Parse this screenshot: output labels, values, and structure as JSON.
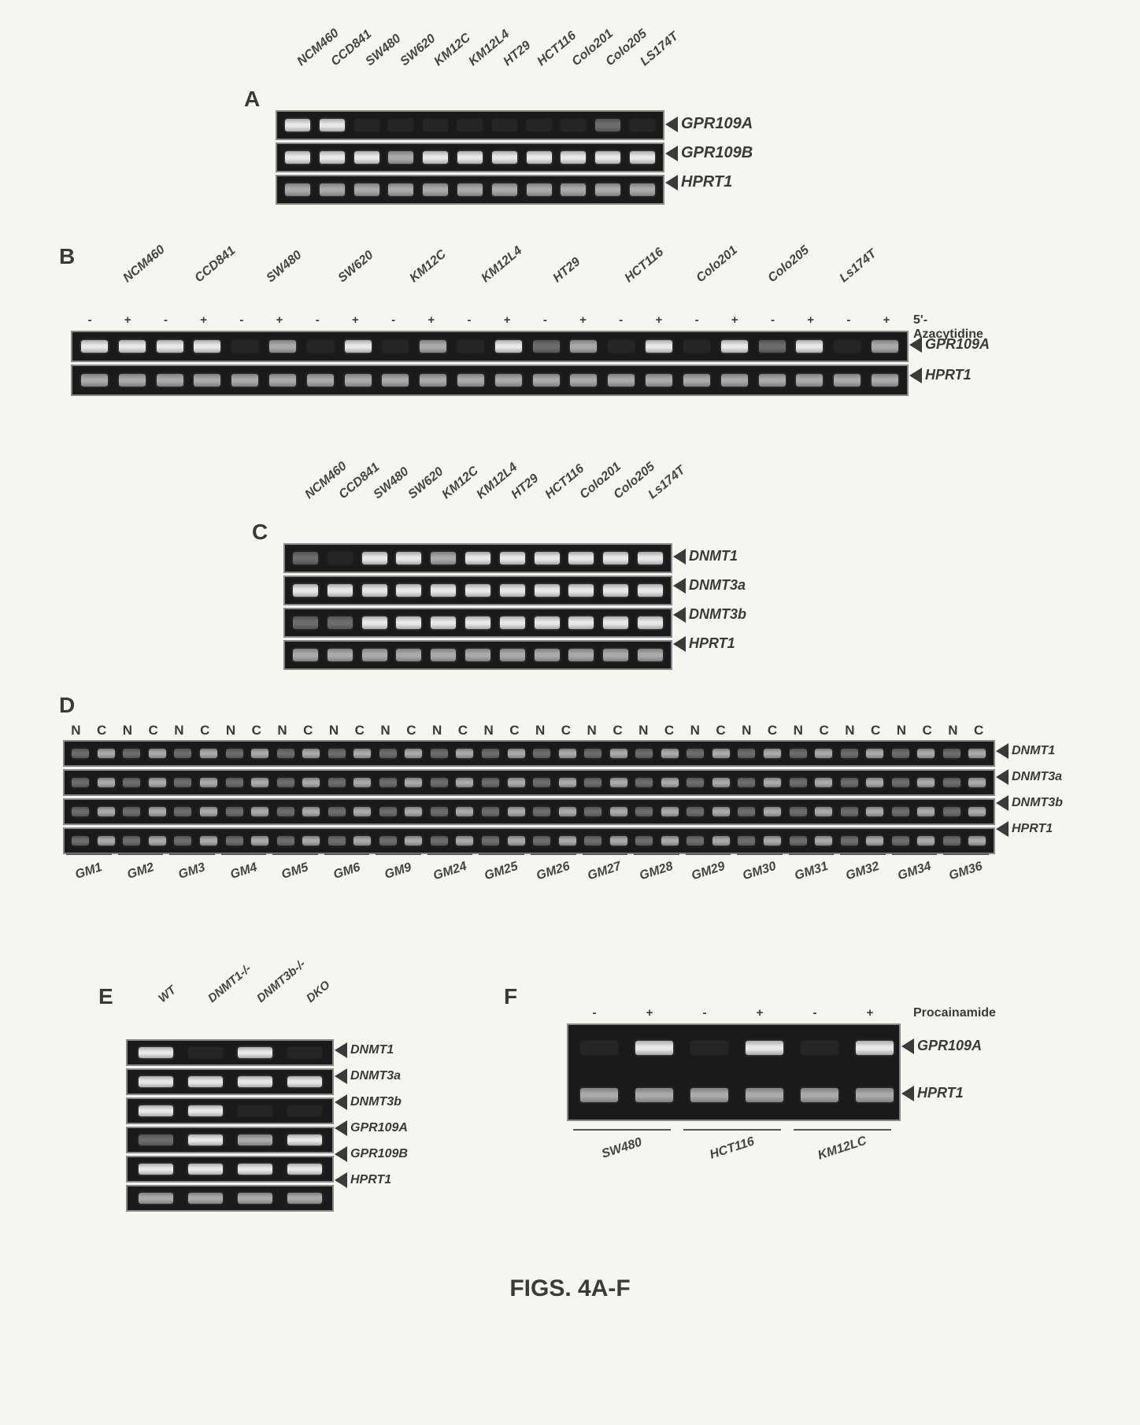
{
  "caption": "FIGS. 4A-F",
  "panelA": {
    "label": "A",
    "samples": [
      "NCM460",
      "CCD841",
      "SW480",
      "SW620",
      "KM12C",
      "KM12L4",
      "HT29",
      "HCT116",
      "Colo201",
      "Colo205",
      "LS174T"
    ],
    "rows": [
      {
        "name": "GPR109A",
        "intensity": [
          "strong",
          "strong",
          "faint",
          "faint",
          "faint",
          "faint",
          "faint",
          "faint",
          "faint",
          "weak",
          "faint"
        ]
      },
      {
        "name": "GPR109B",
        "intensity": [
          "strong",
          "strong",
          "strong",
          "med",
          "strong",
          "strong",
          "strong",
          "strong",
          "strong",
          "strong",
          "strong"
        ]
      },
      {
        "name": "HPRT1",
        "intensity": [
          "med",
          "med",
          "med",
          "med",
          "med",
          "med",
          "med",
          "med",
          "med",
          "med",
          "med"
        ]
      }
    ]
  },
  "panelB": {
    "label": "B",
    "treatment": "5'-Azacytidine",
    "samples": [
      "NCM460",
      "CCD841",
      "SW480",
      "SW620",
      "KM12C",
      "KM12L4",
      "HT29",
      "HCT116",
      "Colo201",
      "Colo205",
      "Ls174T"
    ],
    "pm": [
      "-",
      "+",
      "-",
      "+",
      "-",
      "+",
      "-",
      "+",
      "-",
      "+",
      "-",
      "+",
      "-",
      "+",
      "-",
      "+",
      "-",
      "+",
      "-",
      "+",
      "-",
      "+"
    ],
    "rows": [
      {
        "name": "GPR109A",
        "intensity": [
          "strong",
          "strong",
          "strong",
          "strong",
          "faint",
          "med",
          "faint",
          "strong",
          "faint",
          "med",
          "faint",
          "strong",
          "weak",
          "med",
          "faint",
          "strong",
          "faint",
          "strong",
          "weak",
          "strong",
          "faint",
          "med"
        ]
      },
      {
        "name": "HPRT1",
        "intensity": [
          "med",
          "med",
          "med",
          "med",
          "med",
          "med",
          "med",
          "med",
          "med",
          "med",
          "med",
          "med",
          "med",
          "med",
          "med",
          "med",
          "med",
          "med",
          "med",
          "med",
          "med",
          "med"
        ]
      }
    ]
  },
  "panelC": {
    "label": "C",
    "samples": [
      "NCM460",
      "CCD841",
      "SW480",
      "SW620",
      "KM12C",
      "KM12L4",
      "HT29",
      "HCT116",
      "Colo201",
      "Colo205",
      "Ls174T"
    ],
    "rows": [
      {
        "name": "DNMT1",
        "intensity": [
          "weak",
          "faint",
          "strong",
          "strong",
          "med",
          "strong",
          "strong",
          "strong",
          "strong",
          "strong",
          "strong"
        ]
      },
      {
        "name": "DNMT3a",
        "intensity": [
          "strong",
          "strong",
          "strong",
          "strong",
          "strong",
          "strong",
          "strong",
          "strong",
          "strong",
          "strong",
          "strong"
        ]
      },
      {
        "name": "DNMT3b",
        "intensity": [
          "weak",
          "weak",
          "strong",
          "strong",
          "strong",
          "strong",
          "strong",
          "strong",
          "strong",
          "strong",
          "strong"
        ]
      },
      {
        "name": "HPRT1",
        "intensity": [
          "med",
          "med",
          "med",
          "med",
          "med",
          "med",
          "med",
          "med",
          "med",
          "med",
          "med"
        ]
      }
    ]
  },
  "panelD": {
    "label": "D",
    "nc_header": [
      "N",
      "C",
      "N",
      "C",
      "N",
      "C",
      "N",
      "C",
      "N",
      "C",
      "N",
      "C",
      "N",
      "C",
      "N",
      "C",
      "N",
      "C",
      "N",
      "C",
      "N",
      "C",
      "N",
      "C",
      "N",
      "C",
      "N",
      "C",
      "N",
      "C",
      "N",
      "C",
      "N",
      "C",
      "N",
      "C"
    ],
    "samples": [
      "GM1",
      "GM2",
      "GM3",
      "GM4",
      "GM5",
      "GM6",
      "GM9",
      "GM24",
      "GM25",
      "GM26",
      "GM27",
      "GM28",
      "GM29",
      "GM30",
      "GM31",
      "GM32",
      "GM34",
      "GM36"
    ],
    "rows": [
      {
        "name": "DNMT1",
        "count": 36
      },
      {
        "name": "DNMT3a",
        "count": 36
      },
      {
        "name": "DNMT3b",
        "count": 36
      },
      {
        "name": "HPRT1",
        "count": 36
      }
    ]
  },
  "panelE": {
    "label": "E",
    "samples": [
      "WT",
      "DNMT1-/-",
      "DNMT3b-/-",
      "DKO"
    ],
    "rows": [
      {
        "name": "DNMT1",
        "intensity": [
          "strong",
          "faint",
          "strong",
          "faint"
        ]
      },
      {
        "name": "DNMT3a",
        "intensity": [
          "strong",
          "strong",
          "strong",
          "strong"
        ]
      },
      {
        "name": "DNMT3b",
        "intensity": [
          "strong",
          "strong",
          "faint",
          "faint"
        ]
      },
      {
        "name": "GPR109A",
        "intensity": [
          "weak",
          "strong",
          "med",
          "strong"
        ]
      },
      {
        "name": "GPR109B",
        "intensity": [
          "strong",
          "strong",
          "strong",
          "strong"
        ]
      },
      {
        "name": "HPRT1",
        "intensity": [
          "med",
          "med",
          "med",
          "med"
        ]
      }
    ]
  },
  "panelF": {
    "label": "F",
    "treatment": "Procainamide",
    "samples": [
      "SW480",
      "HCT116",
      "KM12LC"
    ],
    "pm": [
      "-",
      "+",
      "-",
      "+",
      "-",
      "+"
    ],
    "rows": [
      {
        "name": "GPR109A",
        "intensity": [
          "faint",
          "strong",
          "faint",
          "strong",
          "faint",
          "strong"
        ]
      },
      {
        "name": "HPRT1",
        "intensity": [
          "med",
          "med",
          "med",
          "med",
          "med",
          "med"
        ]
      }
    ]
  }
}
